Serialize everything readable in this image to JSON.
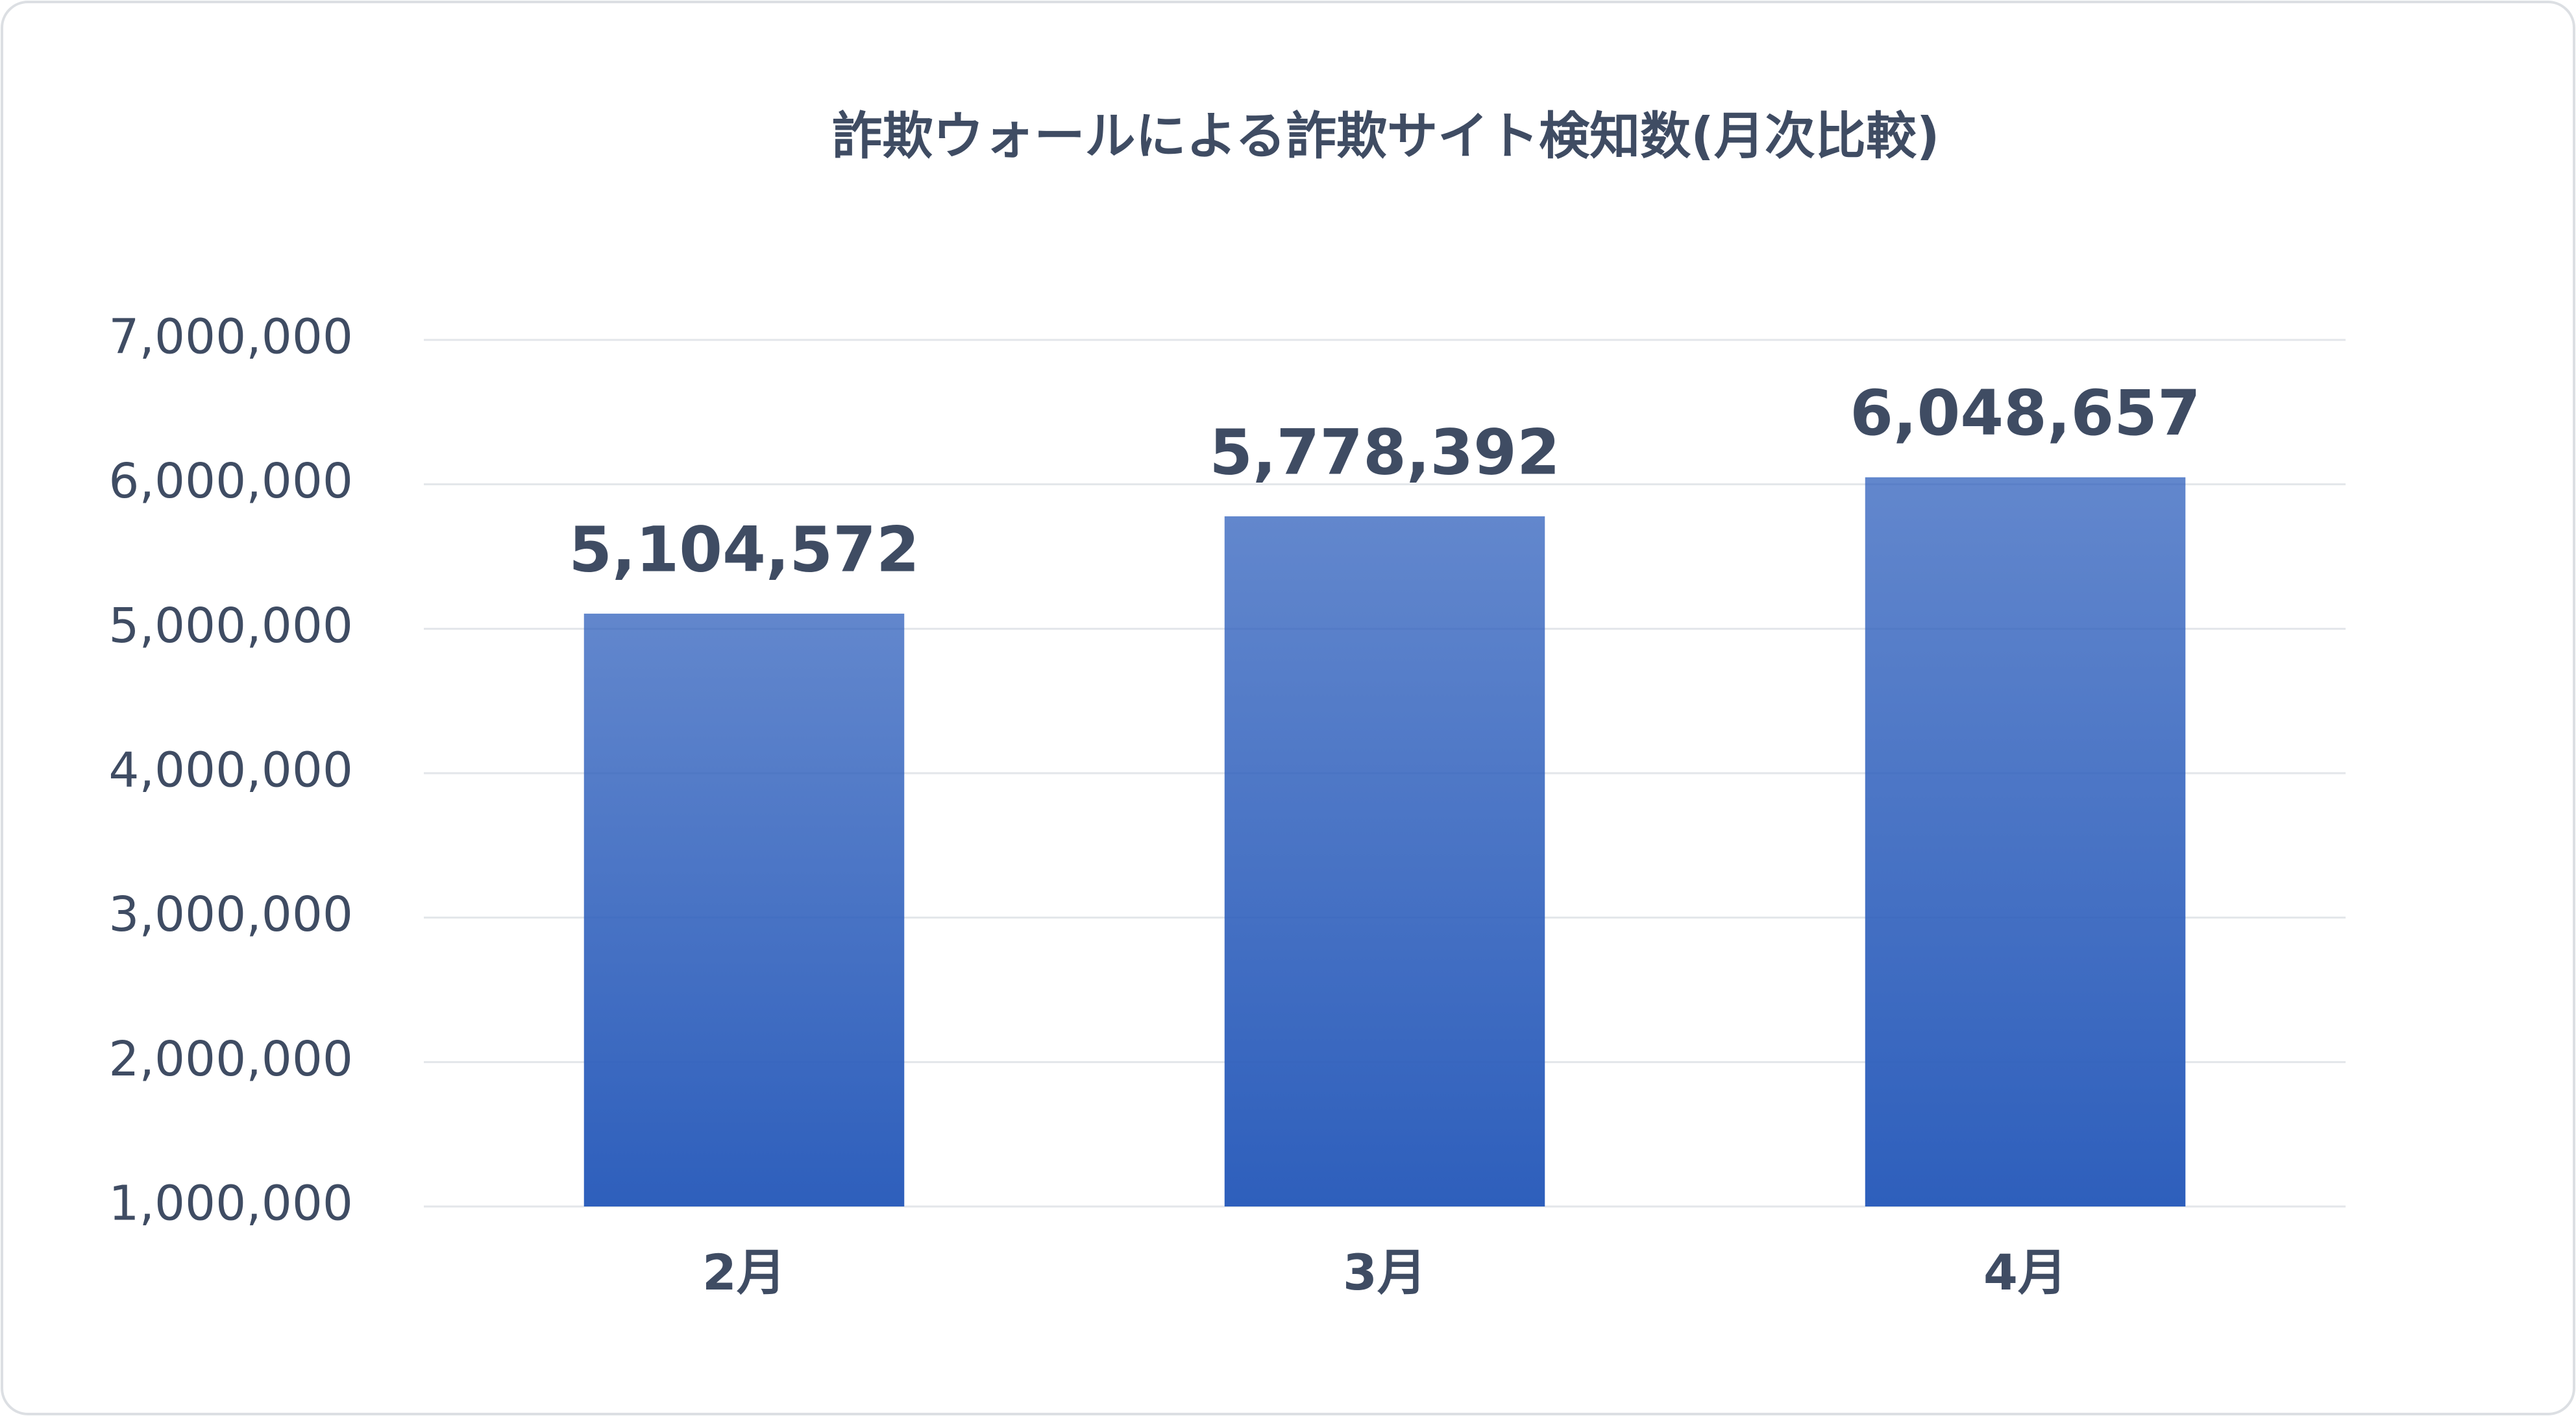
{
  "chart_data": {
    "type": "bar",
    "title": "詐欺ウォールによる詐欺サイト検知数(月次比較)",
    "categories": [
      "2月",
      "3月",
      "4月"
    ],
    "values": [
      5104572,
      5778392,
      6048657
    ],
    "value_labels": [
      "5,104,572",
      "5,778,392",
      "6,048,657"
    ],
    "color": "#2e5fbc",
    "ylim": [
      1000000,
      7000000
    ],
    "yticks": [
      {
        "value": 1000000,
        "label": "1,000,000"
      },
      {
        "value": 2000000,
        "label": "2,000,000"
      },
      {
        "value": 3000000,
        "label": "3,000,000"
      },
      {
        "value": 4000000,
        "label": "4,000,000"
      },
      {
        "value": 5000000,
        "label": "5,000,000"
      },
      {
        "value": 6000000,
        "label": "6,000,000"
      },
      {
        "value": 7000000,
        "label": "7,000,000"
      }
    ],
    "grid": true
  }
}
